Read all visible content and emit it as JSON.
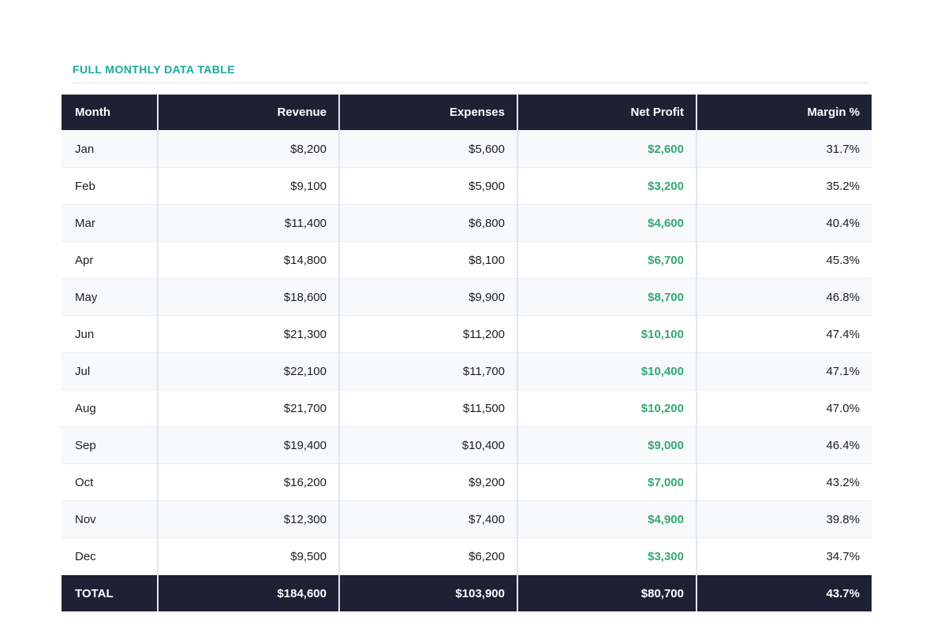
{
  "section": {
    "title": "FULL MONTHLY DATA TABLE"
  },
  "colors": {
    "accent_teal": "#17a99b",
    "header_bg": "#1e2133",
    "profit_green": "#34a873",
    "row_alt_bg": "#f8f9fb",
    "border_vertical": "#e2e6ef",
    "border_horizontal": "#eceef4"
  },
  "chart_data": {
    "type": "table",
    "title": "FULL MONTHLY DATA TABLE",
    "columns": [
      "Month",
      "Revenue",
      "Expenses",
      "Net Profit",
      "Margin %"
    ],
    "rows": [
      {
        "month": "Jan",
        "revenue": "$8,200",
        "expenses": "$5,600",
        "net_profit": "$2,600",
        "margin": "31.7%"
      },
      {
        "month": "Feb",
        "revenue": "$9,100",
        "expenses": "$5,900",
        "net_profit": "$3,200",
        "margin": "35.2%"
      },
      {
        "month": "Mar",
        "revenue": "$11,400",
        "expenses": "$6,800",
        "net_profit": "$4,600",
        "margin": "40.4%"
      },
      {
        "month": "Apr",
        "revenue": "$14,800",
        "expenses": "$8,100",
        "net_profit": "$6,700",
        "margin": "45.3%"
      },
      {
        "month": "May",
        "revenue": "$18,600",
        "expenses": "$9,900",
        "net_profit": "$8,700",
        "margin": "46.8%"
      },
      {
        "month": "Jun",
        "revenue": "$21,300",
        "expenses": "$11,200",
        "net_profit": "$10,100",
        "margin": "47.4%"
      },
      {
        "month": "Jul",
        "revenue": "$22,100",
        "expenses": "$11,700",
        "net_profit": "$10,400",
        "margin": "47.1%"
      },
      {
        "month": "Aug",
        "revenue": "$21,700",
        "expenses": "$11,500",
        "net_profit": "$10,200",
        "margin": "47.0%"
      },
      {
        "month": "Sep",
        "revenue": "$19,400",
        "expenses": "$10,400",
        "net_profit": "$9,000",
        "margin": "46.4%"
      },
      {
        "month": "Oct",
        "revenue": "$16,200",
        "expenses": "$9,200",
        "net_profit": "$7,000",
        "margin": "43.2%"
      },
      {
        "month": "Nov",
        "revenue": "$12,300",
        "expenses": "$7,400",
        "net_profit": "$4,900",
        "margin": "39.8%"
      },
      {
        "month": "Dec",
        "revenue": "$9,500",
        "expenses": "$6,200",
        "net_profit": "$3,300",
        "margin": "34.7%"
      }
    ],
    "total": {
      "month": "TOTAL",
      "revenue": "$184,600",
      "expenses": "$103,900",
      "net_profit": "$80,700",
      "margin": "43.7%"
    }
  }
}
